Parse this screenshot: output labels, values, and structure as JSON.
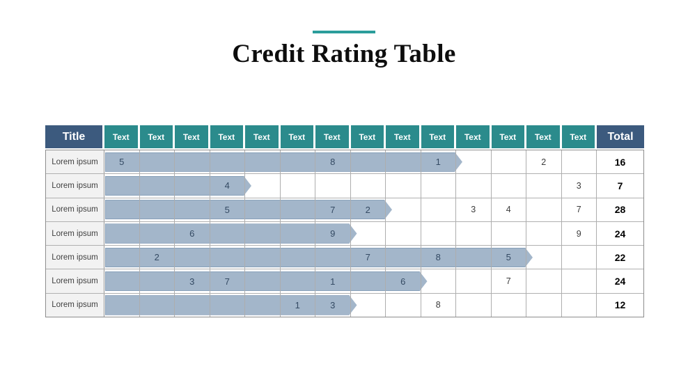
{
  "slide": {
    "title": "Credit Rating Table"
  },
  "chart_data": {
    "type": "table",
    "title": "Credit Rating Table",
    "columns": [
      "Title",
      "Text",
      "Text",
      "Text",
      "Text",
      "Text",
      "Text",
      "Text",
      "Text",
      "Text",
      "Text",
      "Text",
      "Text",
      "Text",
      "Text",
      "Total"
    ],
    "row_label": "Lorem ipsum",
    "num_text_columns": 14,
    "rows": [
      {
        "label": "Lorem ipsum",
        "cells": [
          5,
          null,
          null,
          null,
          null,
          null,
          8,
          null,
          null,
          1,
          null,
          null,
          2,
          null
        ],
        "bar_cols": 10,
        "total": 16
      },
      {
        "label": "Lorem ipsum",
        "cells": [
          null,
          null,
          null,
          4,
          null,
          null,
          null,
          null,
          null,
          null,
          null,
          null,
          null,
          3
        ],
        "bar_cols": 4,
        "total": 7
      },
      {
        "label": "Lorem ipsum",
        "cells": [
          null,
          null,
          null,
          5,
          null,
          null,
          7,
          2,
          null,
          null,
          3,
          4,
          null,
          7
        ],
        "bar_cols": 8,
        "total": 28
      },
      {
        "label": "Lorem ipsum",
        "cells": [
          null,
          null,
          6,
          null,
          null,
          null,
          9,
          null,
          null,
          null,
          null,
          null,
          null,
          9
        ],
        "bar_cols": 7,
        "total": 24
      },
      {
        "label": "Lorem ipsum",
        "cells": [
          null,
          2,
          null,
          null,
          null,
          null,
          null,
          7,
          null,
          8,
          null,
          5,
          null,
          null
        ],
        "bar_cols": 12,
        "total": 22
      },
      {
        "label": "Lorem ipsum",
        "cells": [
          null,
          null,
          3,
          7,
          null,
          null,
          1,
          null,
          6,
          null,
          null,
          7,
          null,
          null
        ],
        "bar_cols": 9,
        "total": 24
      },
      {
        "label": "Lorem ipsum",
        "cells": [
          null,
          null,
          null,
          null,
          null,
          1,
          3,
          null,
          null,
          8,
          null,
          null,
          null,
          null
        ],
        "bar_cols": 7,
        "total": 12
      }
    ],
    "colors": {
      "accent_line": "#2b9d9b",
      "header_teal": "#2b8b8c",
      "header_blue": "#3c5a7e",
      "bar_fill": "#a3b6ca",
      "bar_border": "#87a0b9",
      "bar_text": "#344a63"
    }
  }
}
